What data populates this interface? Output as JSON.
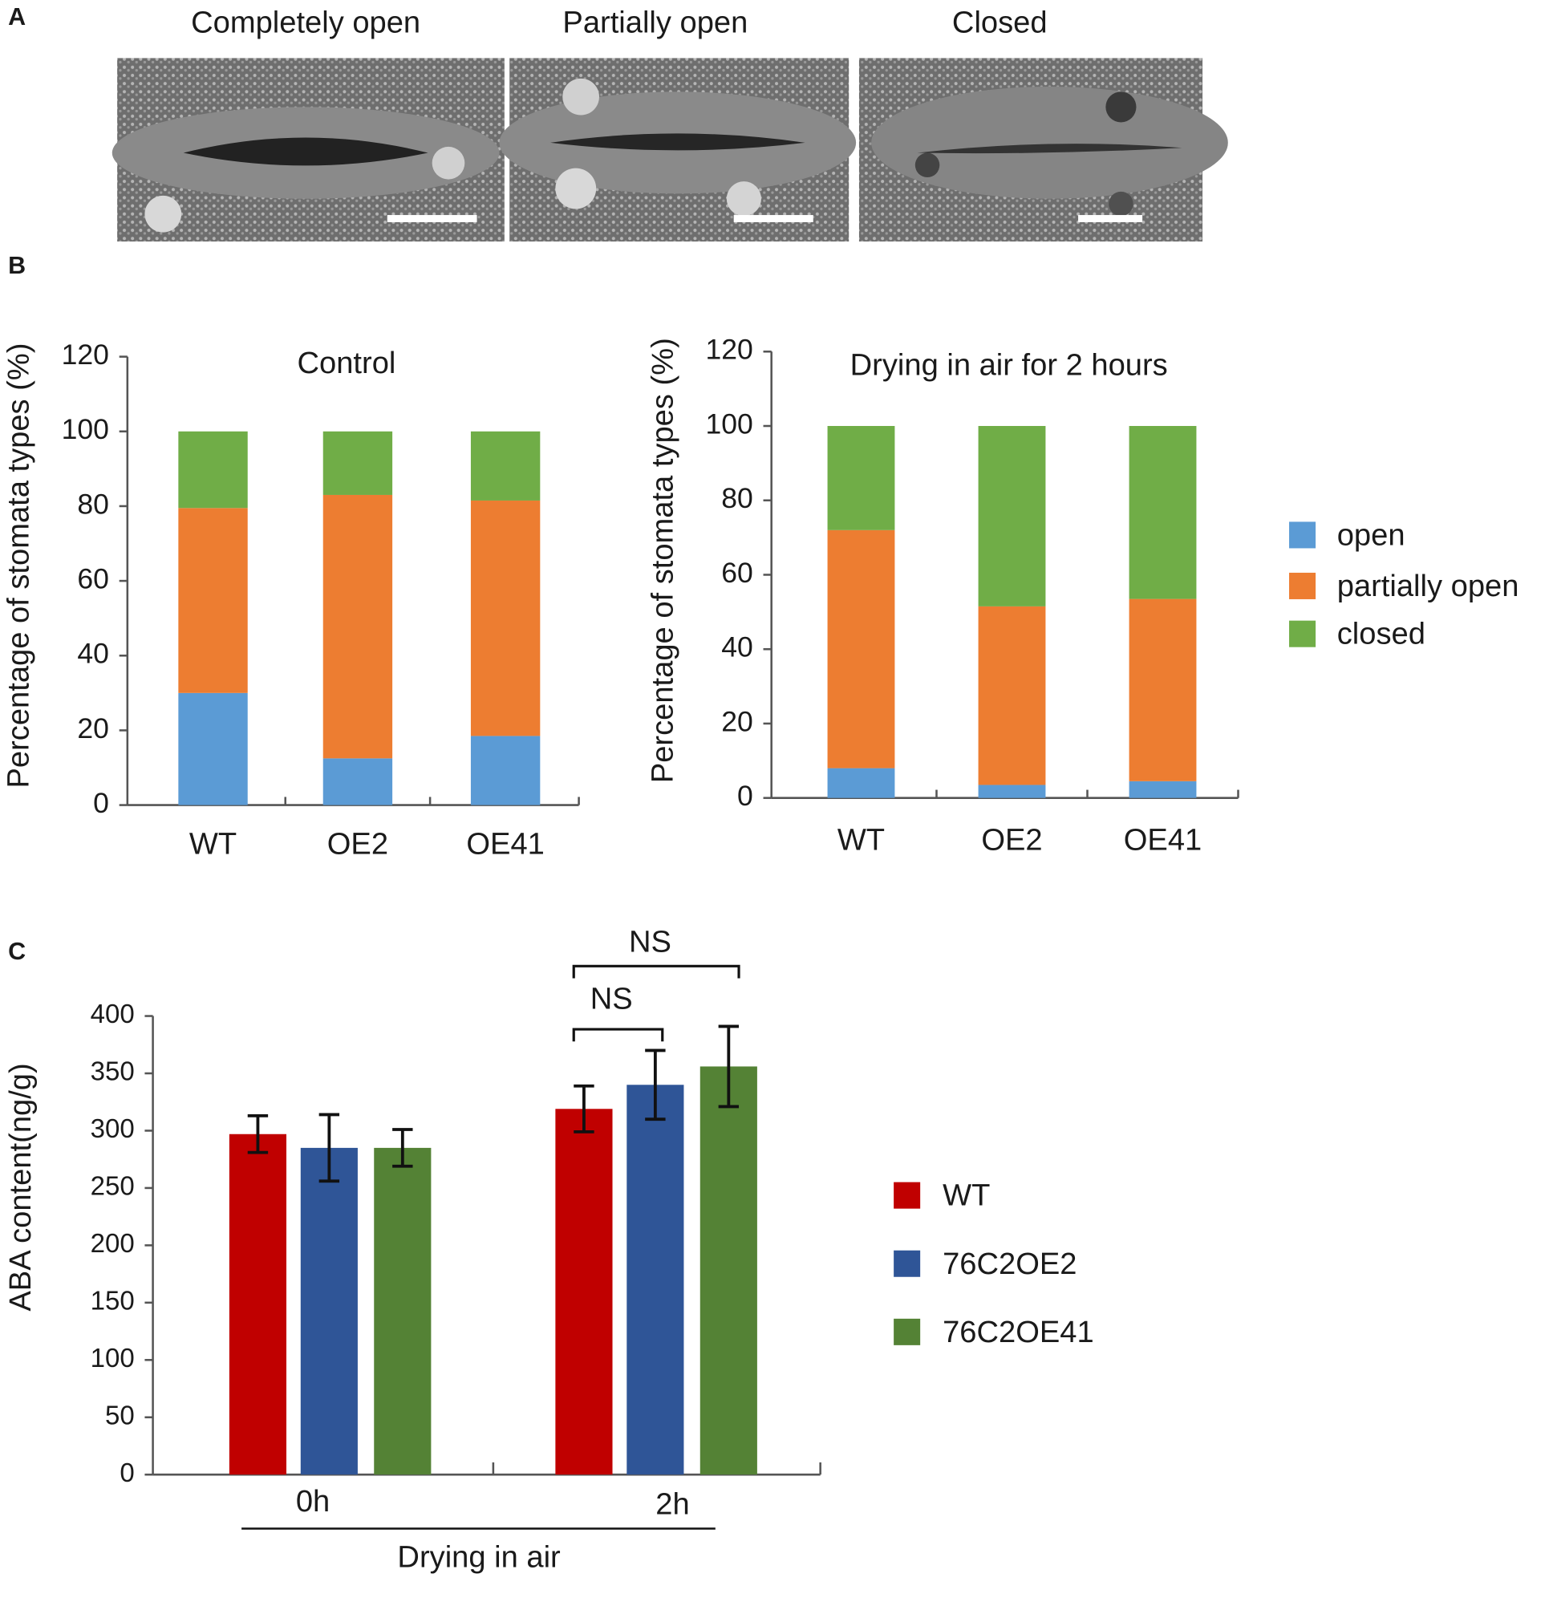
{
  "labels": [
    "A",
    "B",
    "C"
  ],
  "micrographs": [
    "Completely open",
    "Partially open",
    "Closed"
  ],
  "chart_data": [
    {
      "type": "bar",
      "stacked": true,
      "title": "Control",
      "y_label": "Percentage of stomata types (%)",
      "categories": [
        "WT",
        "OE2",
        "OE41"
      ],
      "series": [
        {
          "color": "#5b9bd5",
          "values": [
            30,
            12.5,
            18.5
          ]
        },
        {
          "color": "#ed7d31",
          "values": [
            49.5,
            70.5,
            63
          ]
        },
        {
          "color": "#70ad47",
          "values": [
            20.5,
            17,
            18.5
          ]
        }
      ],
      "ylim": [
        0,
        120
      ],
      "yticks": [
        0,
        20,
        40,
        60,
        80,
        100,
        120
      ]
    },
    {
      "type": "bar",
      "stacked": true,
      "title": "Drying in air for 2 hours",
      "y_label": "Percentage of stomata types (%)",
      "categories": [
        "WT",
        "OE2",
        "OE41"
      ],
      "series": [
        {
          "name": "open",
          "color": "#5b9bd5",
          "values": [
            8,
            3.5,
            4.5
          ]
        },
        {
          "name": "partially open",
          "color": "#ed7d31",
          "values": [
            64,
            48,
            49
          ]
        },
        {
          "name": "closed",
          "color": "#70ad47",
          "values": [
            28,
            48.5,
            46.5
          ]
        }
      ],
      "ylim": [
        0,
        120
      ],
      "yticks": [
        0,
        20,
        40,
        60,
        80,
        100,
        120
      ],
      "legend": "right"
    },
    {
      "type": "bar",
      "stacked": false,
      "y_label": "ABA content(ng/g)",
      "x_label": "Drying in air",
      "categories": [
        "0h",
        "2h"
      ],
      "series": [
        {
          "name": "WT",
          "color": "#c00000",
          "values": [
            297,
            319
          ],
          "errors": [
            16,
            20
          ]
        },
        {
          "name": "76C2OE2",
          "color": "#2f5597",
          "values": [
            285,
            340
          ],
          "errors": [
            29,
            30
          ]
        },
        {
          "name": "76C2OE41",
          "color": "#548235",
          "values": [
            285,
            356
          ],
          "errors": [
            16,
            35
          ]
        }
      ],
      "ylim": [
        0,
        400
      ],
      "yticks": [
        0,
        50,
        100,
        150,
        200,
        250,
        300,
        350,
        400
      ],
      "legend": "right",
      "annotations": [
        {
          "text": "NS"
        },
        {
          "text": "NS"
        }
      ]
    }
  ]
}
